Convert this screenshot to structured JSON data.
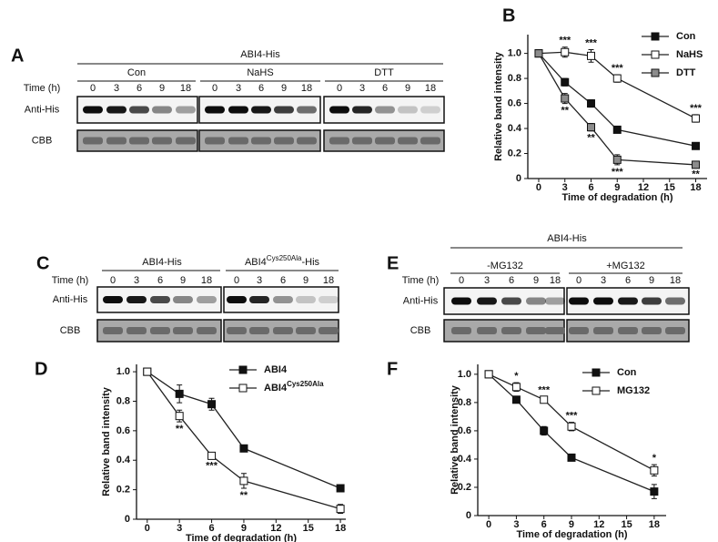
{
  "panel_labels": [
    "A",
    "B",
    "C",
    "D",
    "E",
    "F"
  ],
  "blot_A": {
    "title": "ABI4-His",
    "groups": [
      "Con",
      "NaHS",
      "DTT"
    ],
    "time_label": "Time (h)",
    "times": [
      "0",
      "3",
      "6",
      "9",
      "18"
    ],
    "rows": [
      "Anti-His",
      "CBB"
    ]
  },
  "blot_C": {
    "group_1": "ABI4-His",
    "group_2": {
      "base": "ABI4",
      "sup": "Cys250Ala",
      "suffix": "-His"
    },
    "time_label": "Time (h)",
    "times": [
      "0",
      "3",
      "6",
      "9",
      "18"
    ],
    "rows": [
      "Anti-His",
      "CBB"
    ]
  },
  "blot_E": {
    "title": "ABI4-His",
    "groups": [
      "-MG132",
      "+MG132"
    ],
    "time_label": "Time (h)",
    "times": [
      "0",
      "3",
      "6",
      "9",
      "18"
    ],
    "rows": [
      "Anti-His",
      "CBB"
    ]
  },
  "chart_data": [
    {
      "type": "line",
      "x_label": "Time of degradation (h)",
      "y_label": "Relative band intensity",
      "x": [
        0,
        3,
        6,
        9,
        18
      ],
      "xlim": [
        -1.25,
        19.3
      ],
      "xticks": [
        0,
        3,
        6,
        9,
        12,
        15,
        18
      ],
      "ylim": [
        0,
        1.15
      ],
      "yticks": [
        0,
        0.2,
        0.4,
        0.6,
        0.8,
        {
          "value": 1,
          "label": "1.0"
        }
      ],
      "legend": "upper right",
      "series": [
        {
          "name": "Con",
          "color": "#111111",
          "values": [
            1,
            0.77,
            0.6,
            0.39,
            0.26
          ],
          "errors": [
            0,
            0.03,
            0.03,
            0.01,
            0.01
          ]
        },
        {
          "name": "NaHS",
          "color": "#ffffff",
          "values": [
            1,
            1.01,
            0.98,
            0.8,
            0.48
          ],
          "errors": [
            0,
            0.04,
            0.05,
            0.03,
            0.03
          ],
          "stars": [
            null,
            "***",
            "***",
            "***",
            "***"
          ],
          "star_side": "above"
        },
        {
          "name": "DTT",
          "color": "#8c8c8c",
          "values": [
            1,
            0.64,
            0.41,
            0.15,
            0.11
          ],
          "errors": [
            0,
            0.04,
            0.03,
            0.04,
            0.02
          ],
          "stars": [
            null,
            "**",
            "**",
            "***",
            "**"
          ],
          "star_side": "below"
        }
      ]
    },
    {
      "type": "line",
      "x_label": "Time of degradation (h)",
      "y_label": "Relative band intensity",
      "x": [
        0,
        3,
        6,
        9,
        18
      ],
      "xlim": [
        -1,
        18.5
      ],
      "xticks": [
        0,
        3,
        6,
        9,
        12,
        15,
        18
      ],
      "ylim": [
        0,
        1.05
      ],
      "yticks": [
        0,
        0.2,
        0.4,
        0.6,
        0.8,
        {
          "value": 1,
          "label": "1.0"
        }
      ],
      "legend": "upper right",
      "series": [
        {
          "name": "ABI4",
          "color": "#111111",
          "values": [
            1,
            0.85,
            0.78,
            0.48,
            0.21
          ],
          "errors": [
            0,
            0.06,
            0.04,
            0.01,
            0.02
          ]
        },
        {
          "name": "ABI4",
          "name_sup": "Cys250Ala",
          "color": "#ffffff",
          "values": [
            1,
            0.7,
            0.43,
            0.26,
            0.07
          ],
          "errors": [
            0,
            0.04,
            0.02,
            0.05,
            0.03
          ],
          "stars": [
            null,
            "**",
            "***",
            "**",
            null
          ],
          "star_side": "below"
        }
      ]
    },
    {
      "type": "line",
      "x_label": "Time of degradation (h)",
      "y_label": "Relative band intensity",
      "x": [
        0,
        3,
        6,
        9,
        18
      ],
      "xlim": [
        -1.2,
        19.3
      ],
      "xticks": [
        0,
        3,
        6,
        9,
        12,
        15,
        18
      ],
      "ylim": [
        0,
        1.07
      ],
      "yticks": [
        0,
        0.2,
        0.4,
        0.6,
        0.8,
        {
          "value": 1,
          "label": "1.0"
        }
      ],
      "legend": "upper right",
      "series": [
        {
          "name": "Con",
          "color": "#111111",
          "values": [
            1,
            0.82,
            0.6,
            0.41,
            0.17
          ],
          "errors": [
            0,
            0.02,
            0.03,
            0.01,
            0.05
          ]
        },
        {
          "name": "MG132",
          "color": "#ffffff",
          "values": [
            1,
            0.91,
            0.82,
            0.63,
            0.32
          ],
          "errors": [
            0,
            0.03,
            0.02,
            0.03,
            0.04
          ],
          "stars": [
            null,
            "*",
            "***",
            "***",
            "*"
          ],
          "star_side": "above"
        }
      ]
    }
  ]
}
